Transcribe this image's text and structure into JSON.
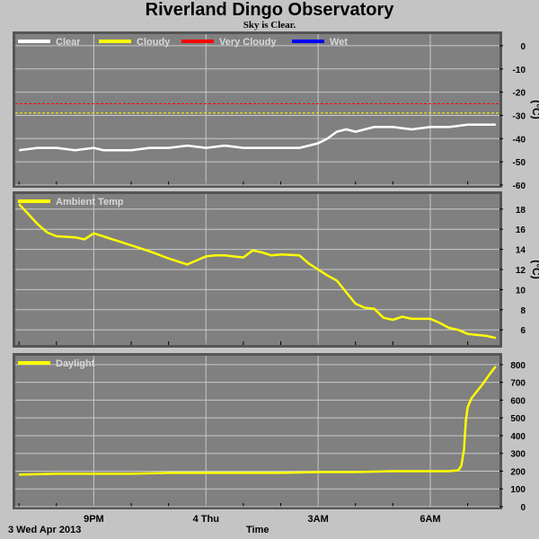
{
  "header": {
    "title": "Riverland Dingo Observatory",
    "subtitle": "Sky is Clear."
  },
  "colors": {
    "background": "#c4c4c4",
    "plot_bg": "#808080",
    "grid": "#c8c8c8",
    "clear": "#ffffff",
    "cloudy": "#ffff00",
    "very_cloudy": "#ff0000",
    "wet": "#0000ff",
    "legend_text": "#d8d8d8"
  },
  "chart_data": [
    {
      "type": "line",
      "id": "sky",
      "ylabel": "(°C)",
      "ylim": [
        -60,
        5
      ],
      "yticks": [
        0,
        -10,
        -20,
        -30,
        -40,
        -50,
        -60
      ],
      "grid": true,
      "legend": "top-left",
      "legend_entries": [
        {
          "name": "Clear",
          "color": "#ffffff"
        },
        {
          "name": "Cloudy",
          "color": "#ffff00"
        },
        {
          "name": "Very Cloudy",
          "color": "#ff0000"
        },
        {
          "name": "Wet",
          "color": "#0000ff"
        }
      ],
      "thresholds": [
        {
          "name": "Very Cloudy",
          "value": -25,
          "color": "#ff0000"
        },
        {
          "name": "Cloudy",
          "value": -29,
          "color": "#ffff00"
        }
      ],
      "series": [
        {
          "name": "Clear",
          "color": "#ffffff",
          "x": [
            19.0,
            19.5,
            20.0,
            20.5,
            21.0,
            21.25,
            21.5,
            22.0,
            22.5,
            23.0,
            23.5,
            24.0,
            24.5,
            25.0,
            25.5,
            26.0,
            26.5,
            26.75,
            27.0,
            27.25,
            27.5,
            27.75,
            28.0,
            28.25,
            28.5,
            29.0,
            29.5,
            30.0,
            30.5,
            31.0,
            31.5,
            31.75
          ],
          "y": [
            -45,
            -44,
            -44,
            -45,
            -44,
            -45,
            -45,
            -45,
            -44,
            -44,
            -43,
            -44,
            -43,
            -44,
            -44,
            -44,
            -44,
            -43,
            -42,
            -40,
            -37,
            -36,
            -37,
            -36,
            -35,
            -35,
            -36,
            -35,
            -35,
            -34,
            -34,
            -34
          ]
        }
      ]
    },
    {
      "type": "line",
      "id": "ambient",
      "ylabel": "(°C)",
      "ylim": [
        4.5,
        19.5
      ],
      "yticks": [
        18,
        16,
        14,
        12,
        10,
        8,
        6
      ],
      "grid": true,
      "legend": "top-left",
      "legend_entries": [
        {
          "name": "Ambient Temp",
          "color": "#ffff00"
        }
      ],
      "series": [
        {
          "name": "Ambient Temp",
          "color": "#ffff00",
          "x": [
            19.0,
            19.25,
            19.5,
            19.75,
            20.0,
            20.5,
            20.75,
            21.0,
            21.25,
            21.5,
            22.0,
            22.5,
            23.0,
            23.5,
            24.0,
            24.25,
            24.5,
            25.0,
            25.25,
            25.5,
            25.75,
            26.0,
            26.5,
            26.75,
            27.0,
            27.25,
            27.5,
            28.0,
            28.25,
            28.5,
            28.75,
            29.0,
            29.25,
            29.5,
            30.0,
            30.25,
            30.5,
            30.75,
            31.0,
            31.5,
            31.75
          ],
          "y": [
            18.5,
            17.5,
            16.5,
            15.7,
            15.3,
            15.2,
            15.0,
            15.6,
            15.3,
            15.0,
            14.4,
            13.8,
            13.1,
            12.5,
            13.3,
            13.4,
            13.4,
            13.2,
            13.9,
            13.7,
            13.4,
            13.5,
            13.4,
            12.6,
            12.0,
            11.4,
            10.9,
            8.6,
            8.2,
            8.1,
            7.2,
            7.0,
            7.3,
            7.1,
            7.1,
            6.7,
            6.2,
            6.0,
            5.6,
            5.4,
            5.2
          ]
        }
      ]
    },
    {
      "type": "line",
      "id": "daylight",
      "ylabel": "",
      "ylim": [
        0,
        850
      ],
      "yticks": [
        800,
        700,
        600,
        500,
        400,
        300,
        200,
        100,
        0
      ],
      "grid": true,
      "legend": "top-left",
      "legend_entries": [
        {
          "name": "Daylight",
          "color": "#ffff00"
        }
      ],
      "series": [
        {
          "name": "Daylight",
          "color": "#ffff00",
          "x": [
            19.0,
            20.0,
            21.0,
            22.0,
            23.0,
            24.0,
            25.0,
            26.0,
            27.0,
            28.0,
            29.0,
            30.0,
            30.5,
            30.75,
            30.83,
            30.9,
            30.95,
            31.0,
            31.1,
            31.25,
            31.4,
            31.5,
            31.6,
            31.75
          ],
          "y": [
            180,
            185,
            185,
            185,
            190,
            190,
            190,
            190,
            195,
            195,
            200,
            200,
            200,
            205,
            230,
            320,
            480,
            560,
            610,
            650,
            690,
            720,
            750,
            790
          ]
        }
      ]
    }
  ],
  "x_axis": {
    "range": [
      18.9,
      31.85
    ],
    "ticks": [
      {
        "value": 21,
        "label": "9PM"
      },
      {
        "value": 24,
        "label": "4 Thu"
      },
      {
        "value": 27,
        "label": "3AM"
      },
      {
        "value": 30,
        "label": "6AM"
      }
    ],
    "minor_every": 1,
    "xlabel": "Time",
    "date_label": "3 Wed Apr 2013"
  }
}
